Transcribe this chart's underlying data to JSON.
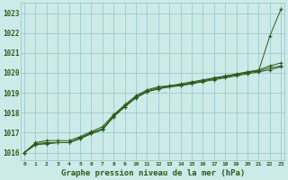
{
  "title": "Graphe pression niveau de la mer (hPa)",
  "bg_color": "#cceae8",
  "grid_color": "#99cccc",
  "line_color": "#2d5a1b",
  "x_min": 0,
  "x_max": 23,
  "y_min": 1015.6,
  "y_max": 1023.5,
  "y_ticks": [
    1016,
    1017,
    1018,
    1019,
    1020,
    1021,
    1022,
    1023
  ],
  "series": [
    [
      1016.0,
      1016.5,
      1016.6,
      1016.6,
      1016.6,
      1016.8,
      1017.05,
      1017.3,
      1017.9,
      1018.4,
      1018.85,
      1019.15,
      1019.3,
      1019.35,
      1019.45,
      1019.55,
      1019.65,
      1019.75,
      1019.85,
      1019.95,
      1020.05,
      1020.1,
      1021.85,
      1023.2
    ],
    [
      1016.0,
      1016.45,
      1016.5,
      1016.5,
      1016.5,
      1016.75,
      1017.0,
      1017.2,
      1017.85,
      1018.35,
      1018.8,
      1019.1,
      1019.25,
      1019.35,
      1019.4,
      1019.5,
      1019.6,
      1019.7,
      1019.8,
      1019.9,
      1020.0,
      1020.1,
      1020.25,
      1020.35
    ],
    [
      1016.0,
      1016.4,
      1016.45,
      1016.5,
      1016.5,
      1016.7,
      1016.95,
      1017.15,
      1017.8,
      1018.3,
      1018.75,
      1019.05,
      1019.2,
      1019.3,
      1019.35,
      1019.45,
      1019.55,
      1019.65,
      1019.75,
      1019.85,
      1019.95,
      1020.05,
      1020.15,
      1020.3
    ],
    [
      1016.0,
      1016.4,
      1016.45,
      1016.5,
      1016.5,
      1016.7,
      1016.95,
      1017.15,
      1017.8,
      1018.3,
      1018.75,
      1019.05,
      1019.2,
      1019.3,
      1019.38,
      1019.48,
      1019.6,
      1019.72,
      1019.8,
      1019.92,
      1020.05,
      1020.15,
      1020.35,
      1020.5
    ]
  ]
}
